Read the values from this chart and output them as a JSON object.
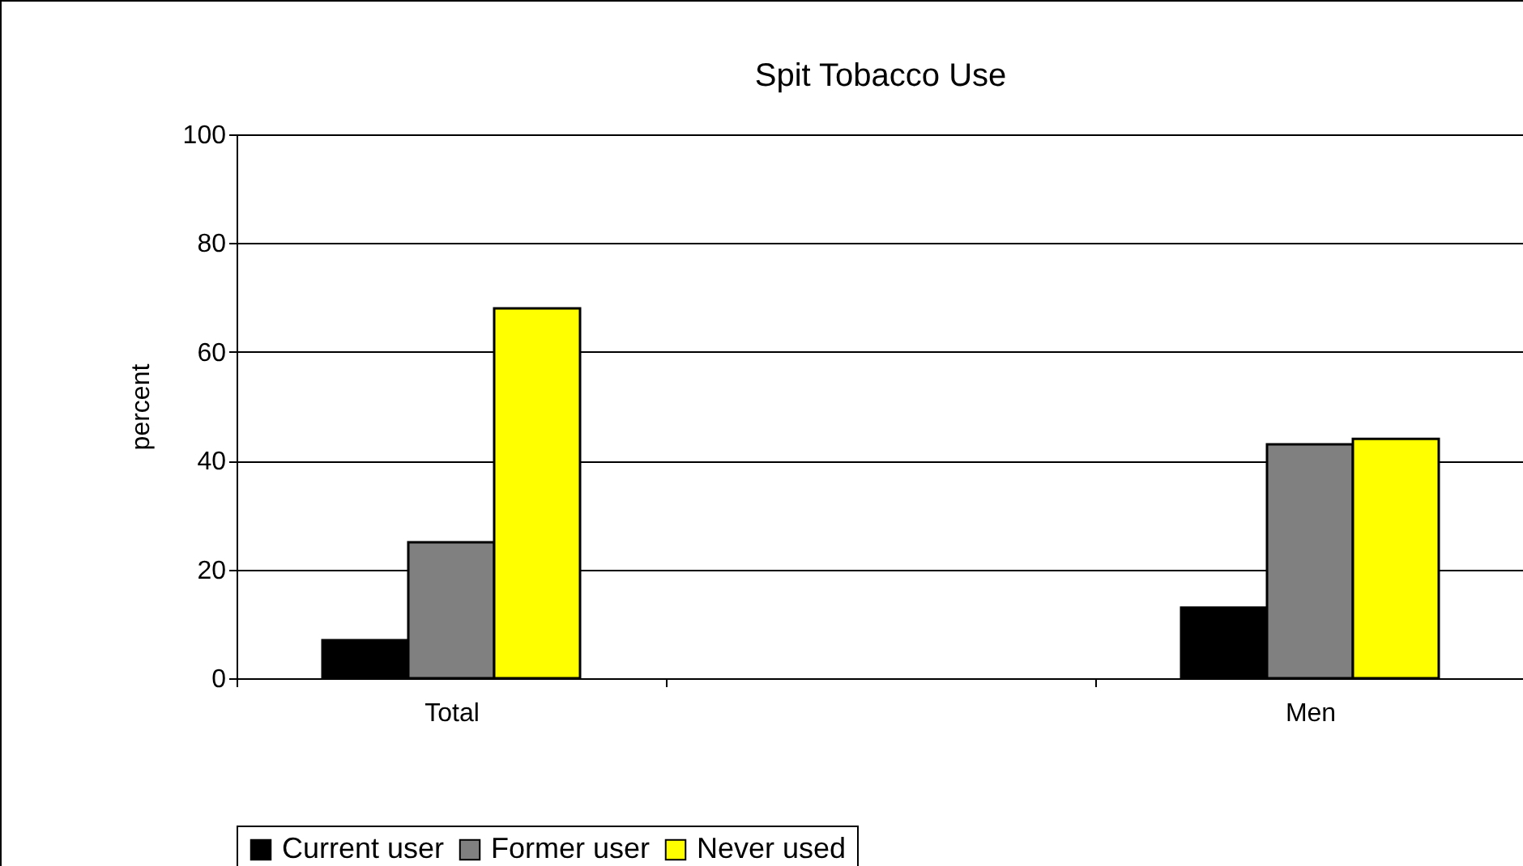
{
  "chart_data": {
    "type": "bar",
    "title": "Spit Tobacco Use",
    "ylabel": "percent",
    "categories": [
      "Total",
      null,
      "Men"
    ],
    "series": [
      {
        "name": "Current user",
        "color": "#000000",
        "values": [
          7,
          null,
          13
        ]
      },
      {
        "name": "Former user",
        "color": "#808080",
        "values": [
          25,
          null,
          43
        ]
      },
      {
        "name": "Never used",
        "color": "#ffff00",
        "values": [
          68,
          null,
          44
        ]
      }
    ],
    "ylim": [
      0,
      100
    ],
    "yticks": [
      0,
      20,
      40,
      60,
      80,
      100
    ],
    "grid": "y",
    "legend": "bottom"
  }
}
